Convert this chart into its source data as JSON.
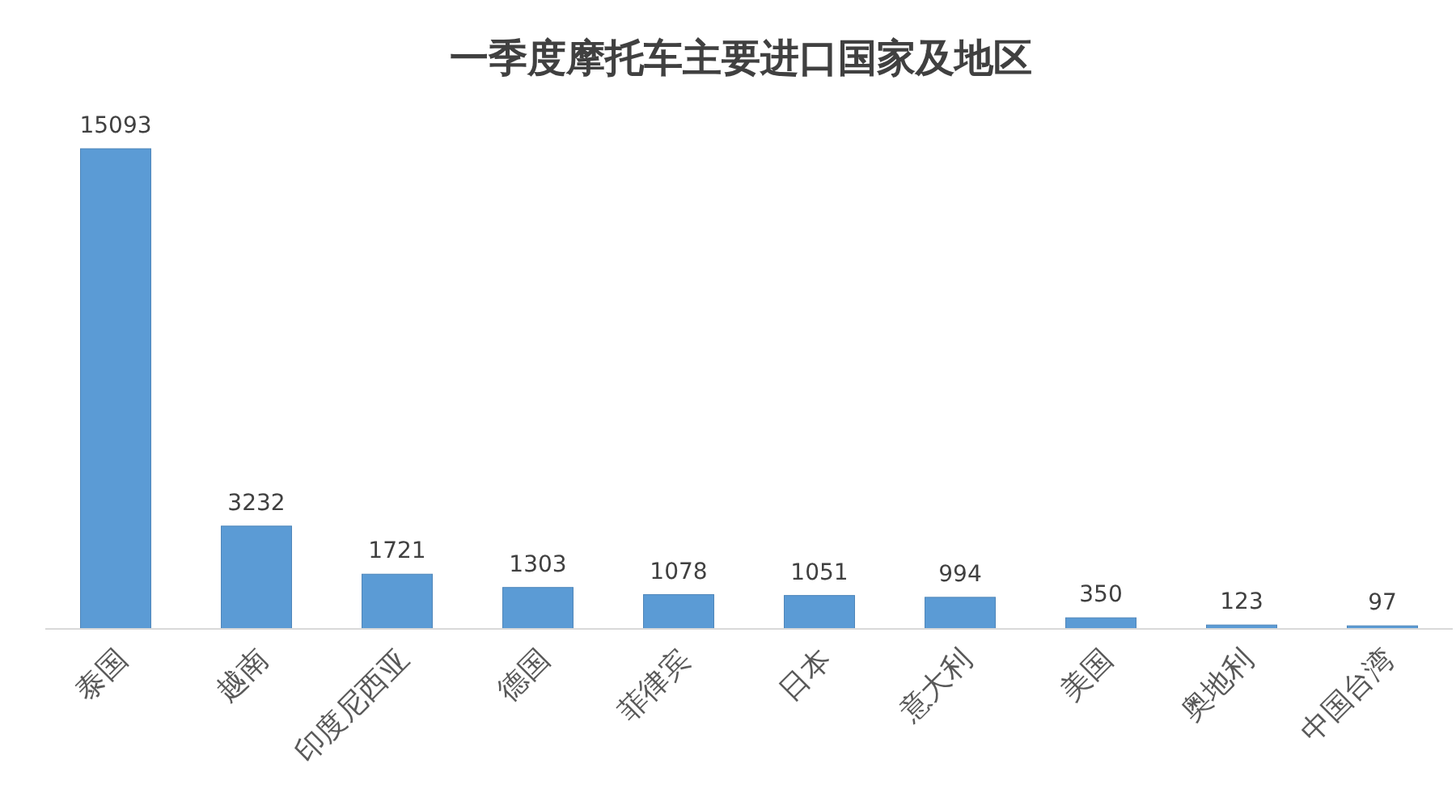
{
  "chart_data": {
    "type": "bar",
    "title": "一季度摩托车主要进口国家及地区",
    "categories": [
      "泰国",
      "越南",
      "印度尼西亚",
      "德国",
      "菲律宾",
      "日本",
      "意大利",
      "美国",
      "奥地利",
      "中国台湾"
    ],
    "values": [
      15093,
      3232,
      1721,
      1303,
      1078,
      1051,
      994,
      350,
      123,
      97
    ],
    "color": "#5b9bd5",
    "data_labels": true
  }
}
